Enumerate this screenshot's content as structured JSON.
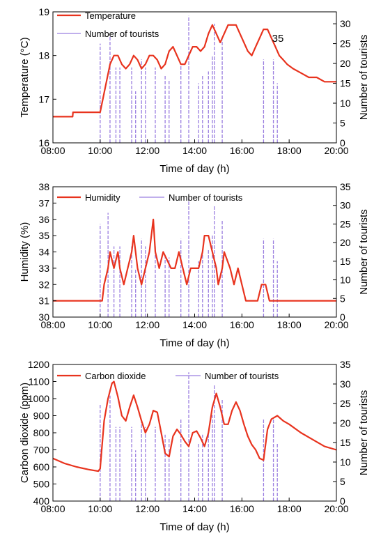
{
  "colors": {
    "sensor": "#e8331e",
    "tourists": "#9b7fe0",
    "axis": "#000000"
  },
  "chart_data": [
    {
      "type": "line",
      "title": "",
      "xlabel": "Time of day (h)",
      "ylabel": "Temperature (°C)",
      "y2label": "Number of tourists",
      "xlim": [
        "08:00",
        "20:00"
      ],
      "xticks": [
        "08:00",
        "10:00",
        "12:00",
        "14:00",
        "16:00",
        "18:00",
        "20:00"
      ],
      "ylim": [
        16,
        19
      ],
      "yticks": [
        "16",
        "17",
        "18",
        "19"
      ],
      "y2lim": [
        0,
        33
      ],
      "y2ticks": [
        "0",
        "5",
        "10",
        "15",
        "20",
        "25",
        "30"
      ],
      "legend": [
        "Temperature",
        "Number of tourists"
      ],
      "legend_position": "top-left",
      "annotation": "35",
      "series": [
        {
          "name": "Temperature",
          "x": [
            "08:00",
            "08:50",
            "08:51",
            "10:00",
            "10:25",
            "10:35",
            "10:45",
            "10:55",
            "11:05",
            "11:15",
            "11:25",
            "11:35",
            "11:45",
            "11:55",
            "12:05",
            "12:15",
            "12:25",
            "12:35",
            "12:45",
            "12:55",
            "13:05",
            "13:15",
            "13:25",
            "13:35",
            "13:45",
            "13:55",
            "14:05",
            "14:15",
            "14:25",
            "14:35",
            "14:45",
            "14:55",
            "15:05",
            "15:15",
            "15:25",
            "15:35",
            "15:45",
            "15:55",
            "16:05",
            "16:15",
            "16:25",
            "16:35",
            "16:45",
            "16:55",
            "17:05",
            "17:15",
            "17:25",
            "17:35",
            "17:45",
            "17:55",
            "18:10",
            "18:30",
            "18:50",
            "19:10",
            "19:30",
            "19:50",
            "20:00"
          ],
          "values": [
            16.6,
            16.6,
            16.7,
            16.7,
            17.8,
            18.0,
            18.0,
            17.8,
            17.7,
            17.8,
            18.0,
            17.9,
            17.7,
            17.8,
            18.0,
            18.0,
            17.9,
            17.7,
            17.8,
            18.1,
            18.2,
            18.0,
            17.8,
            17.8,
            18.0,
            18.2,
            18.2,
            18.1,
            18.2,
            18.5,
            18.7,
            18.5,
            18.3,
            18.5,
            18.7,
            18.7,
            18.7,
            18.5,
            18.3,
            18.1,
            18.0,
            18.2,
            18.4,
            18.6,
            18.6,
            18.4,
            18.2,
            18.0,
            17.9,
            17.8,
            17.7,
            17.6,
            17.5,
            17.5,
            17.4,
            17.4,
            17.4
          ]
        },
        {
          "name": "Number of tourists",
          "axis": "right",
          "x": [
            "10:00",
            "10:25",
            "10:40",
            "10:50",
            "11:20",
            "11:30",
            "11:45",
            "11:55",
            "12:20",
            "12:45",
            "12:55",
            "13:25",
            "13:45",
            "14:10",
            "14:20",
            "14:35",
            "14:45",
            "14:50",
            "15:10",
            "16:55",
            "17:20",
            "17:30"
          ],
          "values": [
            25,
            27,
            19,
            19,
            19,
            13,
            21,
            19,
            19,
            17,
            16,
            20,
            32,
            15,
            17,
            18,
            22,
            30,
            26,
            21,
            21,
            15
          ]
        }
      ]
    },
    {
      "type": "line",
      "title": "",
      "xlabel": "Time of day (h)",
      "ylabel": "Humidity (%)",
      "y2label": "Number of tourists",
      "xlim": [
        "08:00",
        "20:00"
      ],
      "xticks": [
        "08:00",
        "10:00",
        "12:00",
        "14:00",
        "16:00",
        "18:00",
        "20:00"
      ],
      "ylim": [
        30,
        38
      ],
      "yticks": [
        "30",
        "31",
        "32",
        "33",
        "34",
        "35",
        "36",
        "37",
        "38"
      ],
      "y2lim": [
        0,
        35
      ],
      "y2ticks": [
        "0",
        "5",
        "10",
        "15",
        "20",
        "25",
        "30",
        "35"
      ],
      "legend": [
        "Humidity",
        "Number of tourists"
      ],
      "legend_position": "top-left",
      "series": [
        {
          "name": "Humidity",
          "x": [
            "08:00",
            "10:05",
            "10:10",
            "10:20",
            "10:25",
            "10:35",
            "10:45",
            "10:50",
            "11:00",
            "11:10",
            "11:20",
            "11:25",
            "11:35",
            "11:45",
            "11:55",
            "12:05",
            "12:10",
            "12:15",
            "12:20",
            "12:30",
            "12:40",
            "13:00",
            "13:10",
            "13:20",
            "13:30",
            "13:40",
            "13:50",
            "14:00",
            "14:10",
            "14:20",
            "14:25",
            "14:35",
            "14:45",
            "14:55",
            "15:00",
            "15:10",
            "15:15",
            "15:30",
            "15:40",
            "15:50",
            "16:00",
            "16:10",
            "16:40",
            "16:50",
            "17:00",
            "17:10",
            "17:20",
            "17:30",
            "20:00"
          ],
          "values": [
            31,
            31,
            32,
            33,
            34,
            33,
            34,
            33,
            32,
            33,
            34,
            35,
            33,
            32,
            33,
            34,
            35,
            36,
            34,
            33,
            34,
            33,
            33,
            34,
            33,
            32,
            33,
            33,
            33,
            34,
            35,
            35,
            34,
            33,
            32,
            33,
            34,
            33,
            32,
            33,
            32,
            31,
            31,
            32,
            32,
            31,
            31,
            31,
            31
          ]
        },
        {
          "name": "Number of tourists",
          "axis": "right",
          "x": [
            "10:00",
            "10:20",
            "10:35",
            "10:50",
            "11:20",
            "11:30",
            "11:45",
            "11:55",
            "12:20",
            "12:45",
            "12:55",
            "13:25",
            "13:45",
            "14:10",
            "14:20",
            "14:35",
            "14:45",
            "14:50",
            "15:10",
            "16:55",
            "17:20",
            "17:30"
          ],
          "values": [
            25,
            28,
            19,
            19,
            19,
            13,
            21,
            19,
            19,
            17,
            16,
            21,
            32,
            15,
            17,
            18,
            22,
            30,
            26,
            21,
            21,
            15
          ]
        }
      ]
    },
    {
      "type": "line",
      "title": "",
      "xlabel": "Time of day (h)",
      "ylabel": "Carbon dioxide (ppm)",
      "y2label": "Number of tourists",
      "xlim": [
        "08:00",
        "20:00"
      ],
      "xticks": [
        "08:00",
        "10:00",
        "12:00",
        "14:00",
        "16:00",
        "18:00",
        "20:00"
      ],
      "ylim": [
        400,
        1200
      ],
      "yticks": [
        "400",
        "500",
        "600",
        "700",
        "800",
        "900",
        "1000",
        "1100",
        "1200"
      ],
      "y2lim": [
        0,
        35
      ],
      "y2ticks": [
        "0",
        "5",
        "10",
        "15",
        "20",
        "25",
        "30",
        "35"
      ],
      "legend": [
        "Carbon dioxide",
        "Number of tourists"
      ],
      "legend_position": "top-left",
      "series": [
        {
          "name": "Carbon dioxide",
          "x": [
            "08:00",
            "08:30",
            "09:00",
            "09:30",
            "09:55",
            "10:00",
            "10:10",
            "10:20",
            "10:30",
            "10:35",
            "10:45",
            "10:55",
            "11:05",
            "11:15",
            "11:25",
            "11:35",
            "11:45",
            "11:55",
            "12:05",
            "12:15",
            "12:25",
            "12:35",
            "12:45",
            "12:55",
            "13:05",
            "13:15",
            "13:25",
            "13:35",
            "13:45",
            "13:55",
            "14:05",
            "14:15",
            "14:25",
            "14:35",
            "14:45",
            "14:55",
            "15:05",
            "15:15",
            "15:25",
            "15:35",
            "15:45",
            "15:55",
            "16:05",
            "16:15",
            "16:25",
            "16:35",
            "16:45",
            "16:55",
            "17:05",
            "17:15",
            "17:30",
            "17:45",
            "18:00",
            "18:30",
            "19:00",
            "19:30",
            "20:00"
          ],
          "values": [
            650,
            620,
            600,
            585,
            575,
            590,
            870,
            1000,
            1090,
            1100,
            1010,
            900,
            870,
            950,
            1020,
            950,
            870,
            800,
            850,
            930,
            920,
            800,
            680,
            660,
            780,
            820,
            790,
            750,
            720,
            800,
            810,
            770,
            720,
            800,
            950,
            1030,
            950,
            850,
            850,
            930,
            980,
            930,
            850,
            780,
            730,
            700,
            650,
            640,
            820,
            880,
            900,
            870,
            850,
            800,
            760,
            720,
            700
          ]
        },
        {
          "name": "Number of tourists",
          "axis": "right",
          "x": [
            "10:00",
            "10:25",
            "10:40",
            "10:50",
            "11:20",
            "11:30",
            "11:45",
            "11:55",
            "12:20",
            "12:45",
            "12:55",
            "13:25",
            "13:45",
            "14:10",
            "14:20",
            "14:35",
            "14:45",
            "14:50",
            "15:10",
            "16:55",
            "17:20",
            "17:30"
          ],
          "values": [
            25,
            27,
            19,
            19,
            19,
            13,
            21,
            19,
            19,
            17,
            16,
            21,
            33,
            15,
            17,
            18,
            22,
            30,
            26,
            21,
            21,
            15
          ]
        }
      ]
    }
  ]
}
